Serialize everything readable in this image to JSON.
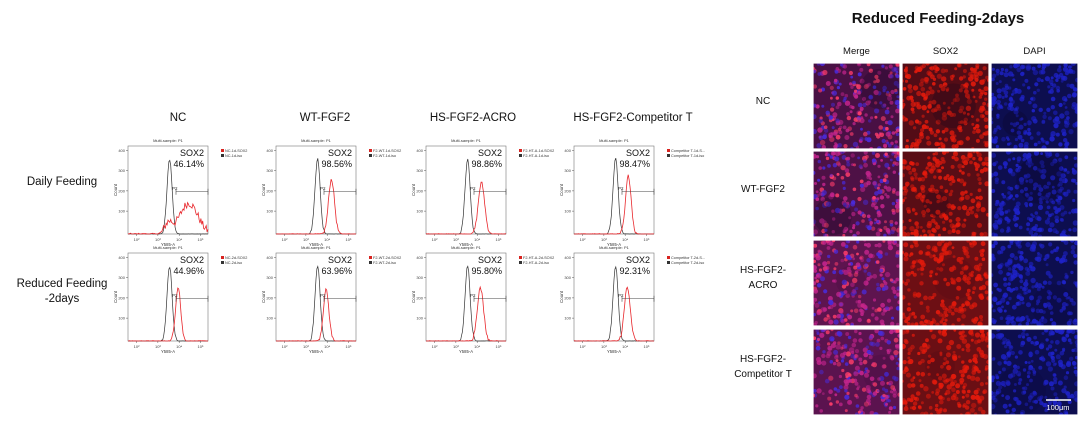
{
  "flow_panel": {
    "column_titles": [
      "NC",
      "WT-FGF2",
      "HS-FGF2-ACRO",
      "HS-FGF2-Competitor T"
    ],
    "row_labels": [
      {
        "lines": [
          "Daily Feeding"
        ]
      },
      {
        "lines": [
          "Reduced Feeding",
          "-2days"
        ]
      }
    ],
    "plot_header": "Multi-sample: P1",
    "marker_label": "SOX2",
    "gate_label": "P2",
    "x_axis_label": "Y585-A",
    "y_axis_label": "Count",
    "y_ticks": [
      "400",
      "300",
      "200",
      "100"
    ],
    "x_ticks": [
      "10²",
      "10³",
      "10⁴",
      "10⁵"
    ],
    "histograms": [
      {
        "row": 0,
        "col": 0,
        "percent": "46.14%",
        "legend": [
          "NC-1d-SOX2",
          "NC-1d-iso"
        ],
        "sox2_peak_log": 4.45,
        "sox2_peak_height": 0.35,
        "sox2_spread": 0.42
      },
      {
        "row": 0,
        "col": 1,
        "percent": "98.56%",
        "legend": [
          "F2-WT-1d-SOX2",
          "F2-WT-1d-iso"
        ],
        "sox2_peak_log": 4.2,
        "sox2_peak_height": 0.62,
        "sox2_spread": 0.14
      },
      {
        "row": 0,
        "col": 2,
        "percent": "98.86%",
        "legend": [
          "F2-HT-A-1d-SOX2",
          "F2-HT-A-1d-iso"
        ],
        "sox2_peak_log": 4.2,
        "sox2_peak_height": 0.58,
        "sox2_spread": 0.15
      },
      {
        "row": 0,
        "col": 3,
        "percent": "98.47%",
        "legend": [
          "Competitor T-1d-S...",
          "Competitor T-1d-iso"
        ],
        "sox2_peak_log": 4.15,
        "sox2_peak_height": 0.66,
        "sox2_spread": 0.13
      },
      {
        "row": 1,
        "col": 0,
        "percent": "44.96%",
        "legend": [
          "NC-2d-SOX2",
          "NC-2d-iso"
        ],
        "sox2_peak_log": 3.95,
        "sox2_peak_height": 0.62,
        "sox2_spread": 0.12
      },
      {
        "row": 1,
        "col": 1,
        "percent": "63.96%",
        "legend": [
          "F2-WT-2d-SOX2",
          "F2-WT-2d-iso"
        ],
        "sox2_peak_log": 3.95,
        "sox2_peak_height": 0.58,
        "sox2_spread": 0.13
      },
      {
        "row": 1,
        "col": 2,
        "percent": "95.80%",
        "legend": [
          "F2-HT-A-2d-SOX2",
          "F2-HT-A-2d-iso"
        ],
        "sox2_peak_log": 4.15,
        "sox2_peak_height": 0.6,
        "sox2_spread": 0.15
      },
      {
        "row": 1,
        "col": 3,
        "percent": "92.31%",
        "legend": [
          "Competitor T-2d-S...",
          "Competitor T-2d-iso"
        ],
        "sox2_peak_log": 4.1,
        "sox2_peak_height": 0.62,
        "sox2_spread": 0.14
      }
    ],
    "iso_peak_log": 3.55
  },
  "if_panel": {
    "title": "Reduced Feeding-2days",
    "channel_titles": [
      "Merge",
      "SOX2",
      "DAPI"
    ],
    "row_labels": [
      {
        "lines": [
          "NC"
        ]
      },
      {
        "lines": [
          "WT-FGF2"
        ]
      },
      {
        "lines": [
          "HS-FGF2-",
          "ACRO"
        ]
      },
      {
        "lines": [
          "HS-FGF2-",
          "Competitor T"
        ]
      }
    ],
    "sox2_intensity": [
      0.55,
      0.65,
      1.0,
      0.95
    ],
    "scale_bar": "100μm",
    "colors": {
      "merge": "#c2248c",
      "sox2": "#e41a0c",
      "dapi": "#1e22c8",
      "background": "#07061c"
    }
  },
  "colors": {
    "sox2_trace": "#e8262b",
    "iso_trace": "#333333",
    "legend_red": "#d8231f",
    "legend_dark": "#333333"
  }
}
